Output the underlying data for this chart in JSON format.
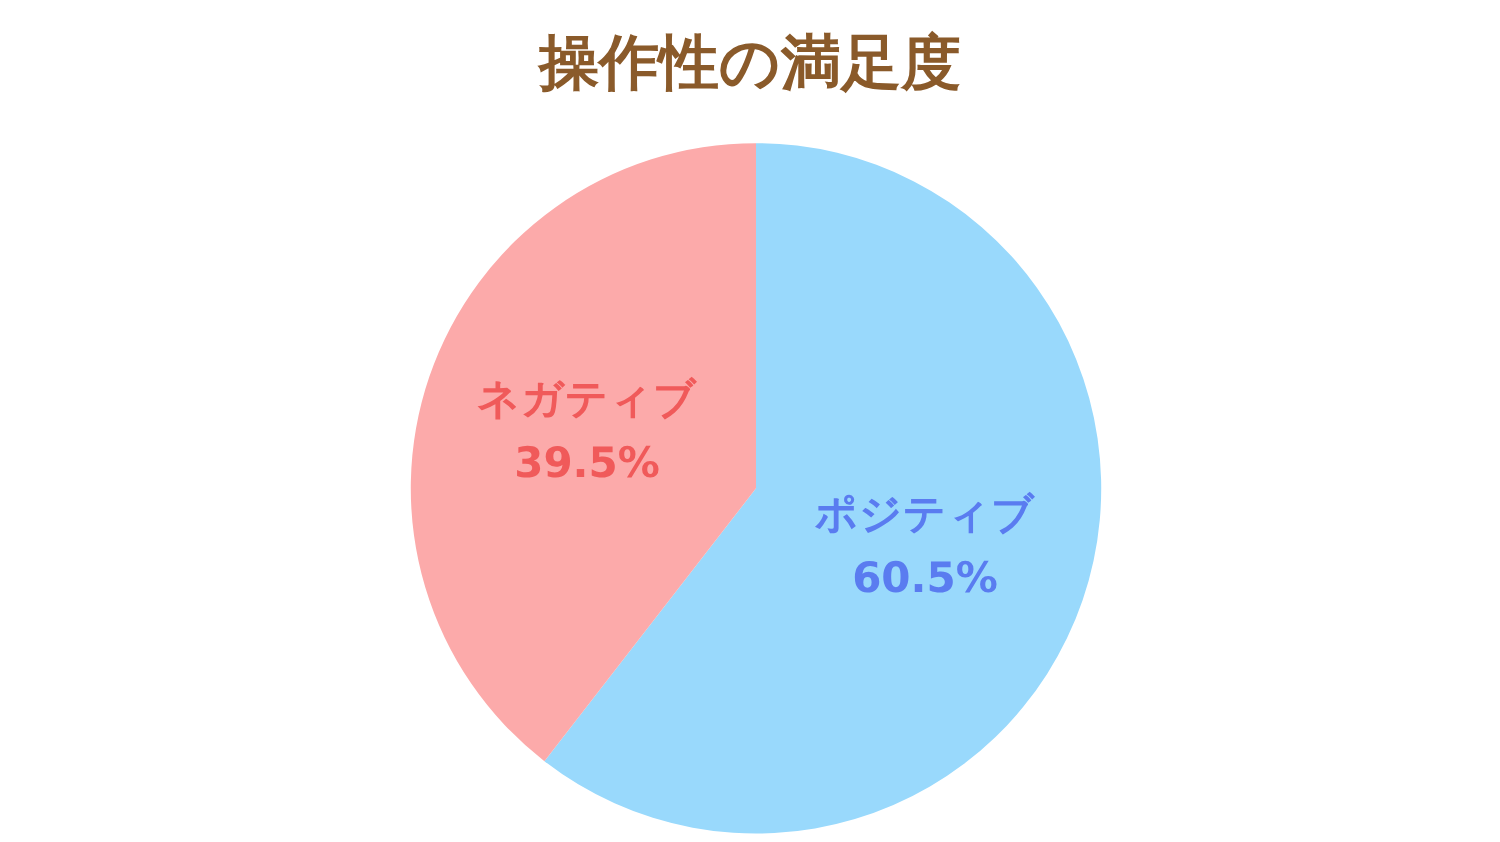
{
  "chart_data": {
    "type": "pie",
    "title": "操作性の満足度",
    "categories": [
      "ポジティブ",
      "ネガティブ"
    ],
    "values": [
      60.5,
      39.5
    ],
    "colors": [
      "#99d9fc",
      "#fcaaaa"
    ],
    "value_labels": [
      "60.5%",
      "39.5%"
    ]
  }
}
